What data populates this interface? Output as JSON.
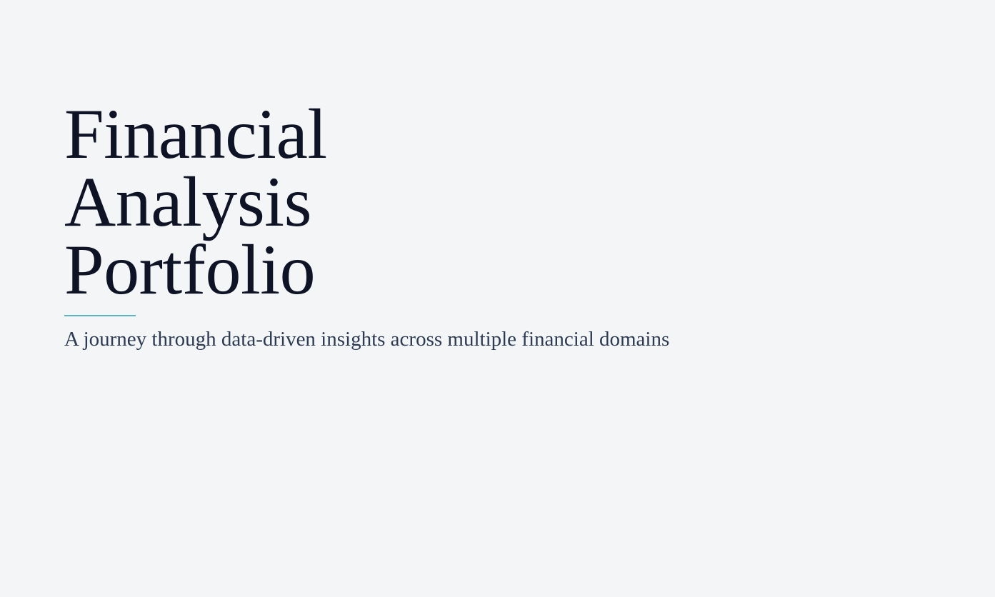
{
  "hero": {
    "title_lines": [
      "Financial",
      "Analysis",
      "Portfolio"
    ],
    "subtitle": "A journey through data-driven insights across multiple financial domains"
  },
  "colors": {
    "background": "#f3f5f7",
    "title": "#0e1426",
    "subtitle": "#2c3a52",
    "accent": "#5fb3bf"
  }
}
